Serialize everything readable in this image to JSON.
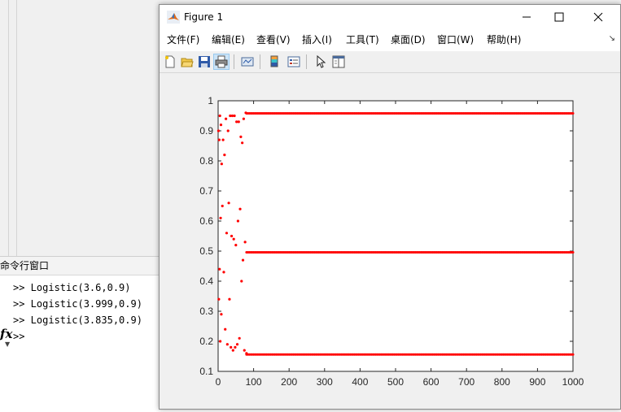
{
  "background": {
    "command_window": {
      "title": "命令行窗口",
      "history": [
        ">> Logistic(3.6,0.9)",
        ">> Logistic(3.999,0.9)",
        ">> Logistic(3.835,0.9)"
      ],
      "prompt": ">>",
      "fx_label": "fx"
    }
  },
  "figure": {
    "window_title": "Figure 1",
    "menu": [
      {
        "label": "文件(F)"
      },
      {
        "label": "编辑(E)"
      },
      {
        "label": "查看(V)"
      },
      {
        "label": "插入(I)"
      },
      {
        "label": "工具(T)"
      },
      {
        "label": "桌面(D)"
      },
      {
        "label": "窗口(W)"
      },
      {
        "label": "帮助(H)"
      }
    ],
    "toolbar_icons": [
      "new-figure-icon",
      "open-file-icon",
      "save-icon",
      "print-icon",
      "link-plot-icon",
      "colorbar-icon",
      "legend-icon",
      "pointer-icon",
      "property-inspector-icon"
    ]
  },
  "chart_data": {
    "type": "scatter",
    "title": "",
    "xlabel": "",
    "ylabel": "",
    "xlim": [
      0,
      1000
    ],
    "ylim": [
      0.1,
      1
    ],
    "xticks": [
      "0",
      "100",
      "200",
      "300",
      "400",
      "500",
      "600",
      "700",
      "800",
      "900",
      "1000"
    ],
    "yticks": [
      "0.1",
      "0.2",
      "0.3",
      "0.4",
      "0.5",
      "0.6",
      "0.7",
      "0.8",
      "0.9",
      "1"
    ],
    "marker_color": "#ff0000",
    "series": [
      {
        "orbit": "logistic map r=3.835, x0=0.9 (period-3 attractor)",
        "x": [
          1,
          2,
          3,
          4,
          5,
          6,
          7,
          8,
          9,
          10,
          12,
          14,
          16,
          18,
          20,
          22,
          24,
          26,
          28,
          30,
          32,
          34,
          36,
          38,
          40,
          42,
          44,
          46,
          48,
          50,
          52,
          54,
          56,
          58,
          60,
          62,
          64,
          66,
          68,
          70,
          72,
          74,
          76,
          78,
          80
        ],
        "y": [
          0.9,
          0.34,
          0.87,
          0.44,
          0.95,
          0.2,
          0.61,
          0.92,
          0.29,
          0.79,
          0.65,
          0.87,
          0.43,
          0.82,
          0.24,
          0.94,
          0.56,
          0.19,
          0.9,
          0.66,
          0.34,
          0.95,
          0.18,
          0.55,
          0.95,
          0.17,
          0.54,
          0.95,
          0.18,
          0.52,
          0.93,
          0.19,
          0.6,
          0.93,
          0.21,
          0.64,
          0.88,
          0.4,
          0.86,
          0.47,
          0.94,
          0.17,
          0.53,
          0.96,
          0.16
        ]
      }
    ],
    "attractor_levels": [
      0.958,
      0.496,
      0.156
    ],
    "attractor_x_range": [
      80,
      1000
    ]
  }
}
